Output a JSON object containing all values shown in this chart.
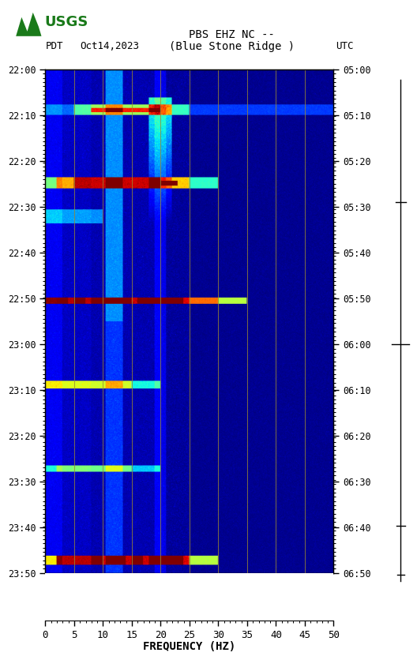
{
  "title_line1": "PBS EHZ NC --",
  "title_line2": "(Blue Stone Ridge )",
  "date_label": "Oct14,2023",
  "left_tz": "PDT",
  "right_tz": "UTC",
  "left_times": [
    "22:00",
    "22:10",
    "22:20",
    "22:30",
    "22:40",
    "22:50",
    "23:00",
    "23:10",
    "23:20",
    "23:30",
    "23:40",
    "23:50"
  ],
  "right_times": [
    "05:00",
    "05:10",
    "05:20",
    "05:30",
    "05:40",
    "05:50",
    "06:00",
    "06:10",
    "06:20",
    "06:30",
    "06:40",
    "06:50"
  ],
  "freq_min": 0,
  "freq_max": 50,
  "freq_ticks": [
    0,
    5,
    10,
    15,
    20,
    25,
    30,
    35,
    40,
    45,
    50
  ],
  "xlabel": "FREQUENCY (HZ)",
  "spectrogram_cmap": "jet",
  "fig_width": 5.52,
  "fig_height": 8.92,
  "logo_color": "#006400",
  "vertical_lines_freq": [
    5,
    10,
    15,
    20,
    25,
    30,
    35,
    40,
    45
  ],
  "n_time_steps": 720,
  "n_freq_steps": 500
}
